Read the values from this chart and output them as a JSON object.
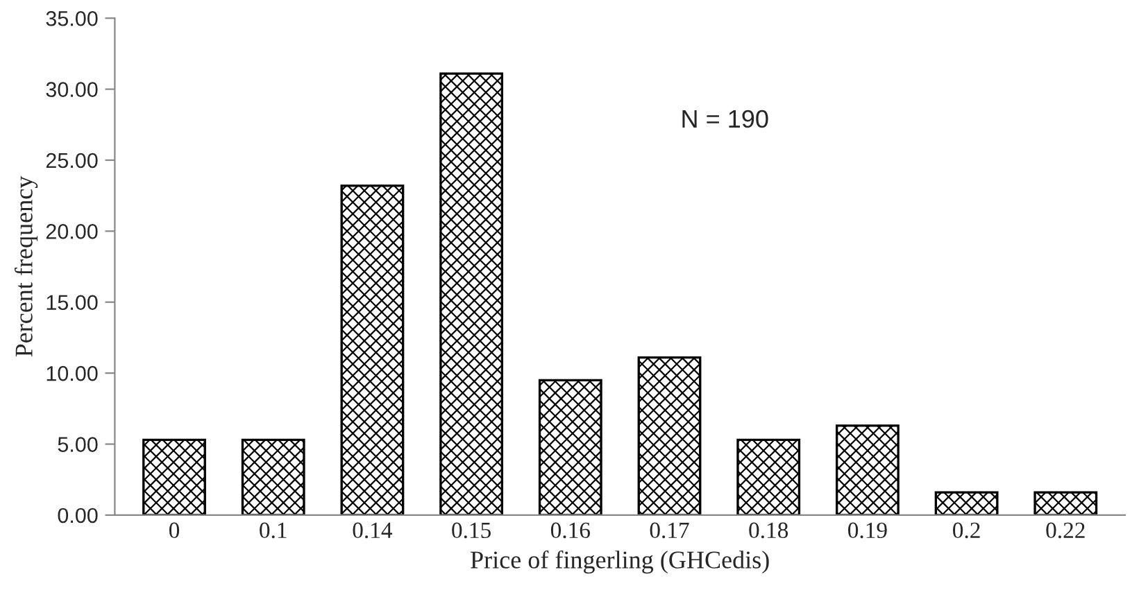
{
  "chart_data": {
    "type": "bar",
    "xlabel": "Price of fingerling (GHCedis)",
    "ylabel": "Percent frequency",
    "categories": [
      "0",
      "0.1",
      "0.14",
      "0.15",
      "0.16",
      "0.17",
      "0.18",
      "0.19",
      "0.2",
      "0.22"
    ],
    "values": [
      5.3,
      5.3,
      23.2,
      31.1,
      9.5,
      11.1,
      5.3,
      6.3,
      1.6,
      1.6
    ],
    "color": "#000000",
    "ylim": [
      0,
      35
    ],
    "yticks": [
      {
        "value": 0,
        "label": "0.00"
      },
      {
        "value": 5,
        "label": "5.00"
      },
      {
        "value": 10,
        "label": "10.00"
      },
      {
        "value": 15,
        "label": "15.00"
      },
      {
        "value": 20,
        "label": "20.00"
      },
      {
        "value": 25,
        "label": "25.00"
      },
      {
        "value": 30,
        "label": "30.00"
      },
      {
        "value": 35,
        "label": "35.00"
      }
    ],
    "annotations": [
      "N = 190"
    ],
    "grid": false,
    "legend": false
  }
}
